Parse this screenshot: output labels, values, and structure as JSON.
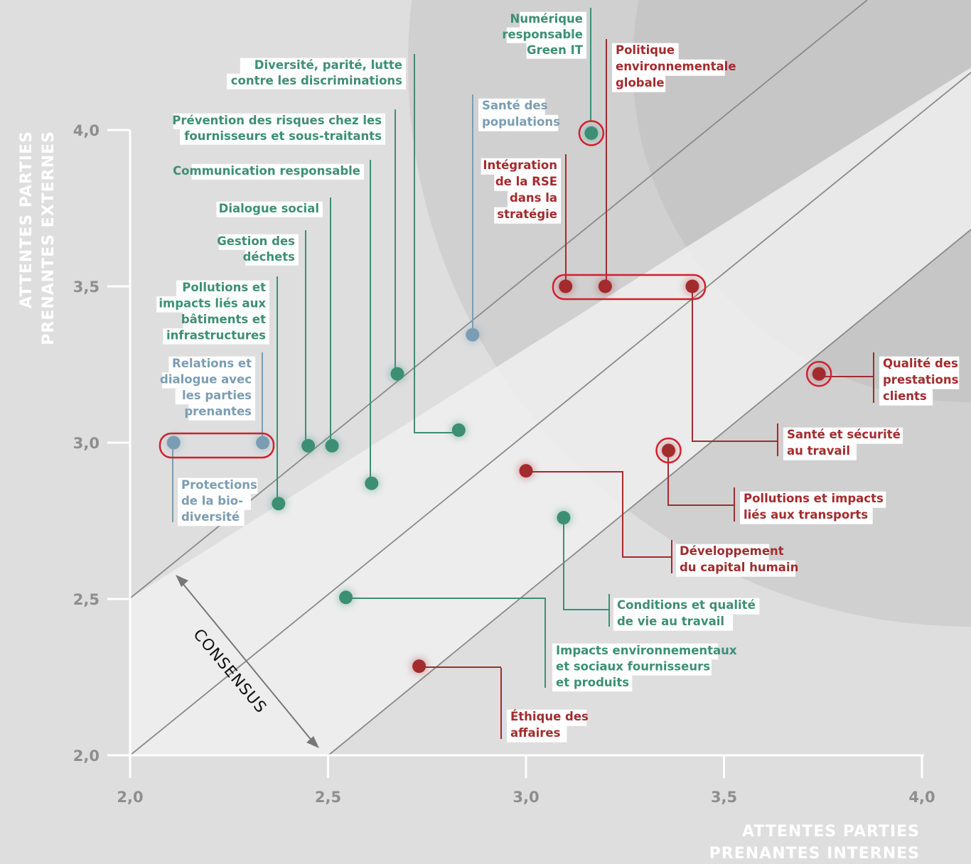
{
  "chart_data": {
    "type": "scatter",
    "xlabel": "ATTENTES PARTIES PRENANTES INTERNES",
    "ylabel": "ATTENTES PARTIES PRENANTES EXTERNES",
    "xlim": [
      2.0,
      4.0
    ],
    "ylim": [
      2.0,
      4.0
    ],
    "x_ticks": [
      "2,0",
      "2,5",
      "3,0",
      "3,5",
      "4,0"
    ],
    "y_ticks": [
      "4,0",
      "3,5",
      "3,0",
      "2,5",
      "2,0"
    ],
    "consensus_label": "CONSENSUS",
    "colors": {
      "green": "#3d8f74",
      "blue": "#7b9db3",
      "red": "#a32b2e",
      "highlight": "#d2202f",
      "axis": "#ffffff",
      "diagonal": "#8a8a8a"
    },
    "points": [
      {
        "name": "Numérique responsable Green IT",
        "lines": [
          "Numérique",
          "responsable",
          "Green IT"
        ],
        "x": 3.165,
        "y": 3.99,
        "color": "green"
      },
      {
        "name": "Politique environnementale globale",
        "lines": [
          "Politique",
          "environnementale",
          "globale"
        ],
        "x": 3.2,
        "y": 3.5,
        "color": "red"
      },
      {
        "name": "Diversité, parité, lutte contre les discriminations",
        "lines": [
          "Diversité, parité, lutte",
          "contre les discriminations"
        ],
        "x": 2.83,
        "y": 3.04,
        "color": "green"
      },
      {
        "name": "Santé des populations",
        "lines": [
          "Santé des",
          "populations"
        ],
        "x": 2.865,
        "y": 3.345,
        "color": "blue"
      },
      {
        "name": "Prévention des risques chez les fournisseurs et sous-traitants",
        "lines": [
          "Prévention des risques chez les",
          "fournisseurs et sous-traitants"
        ],
        "x": 2.675,
        "y": 3.22,
        "color": "green"
      },
      {
        "name": "Intégration de la RSE dans la stratégie",
        "lines": [
          "Intégration",
          "de la RSE",
          "dans la",
          "stratégie"
        ],
        "x": 3.1,
        "y": 3.5,
        "color": "red"
      },
      {
        "name": "Communication responsable",
        "lines": [
          "Communication responsable"
        ],
        "x": 2.61,
        "y": 2.87,
        "color": "green"
      },
      {
        "name": "Dialogue social",
        "lines": [
          "Dialogue social"
        ],
        "x": 2.51,
        "y": 2.99,
        "color": "green"
      },
      {
        "name": "Gestion des déchets",
        "lines": [
          "Gestion des",
          "déchets"
        ],
        "x": 2.45,
        "y": 2.99,
        "color": "green"
      },
      {
        "name": "Pollutions et impacts liés aux bâtiments et infrastructures",
        "lines": [
          "Pollutions et",
          "impacts liés aux",
          "bâtiments et",
          "infrastructures"
        ],
        "x": 2.375,
        "y": 2.805,
        "color": "green"
      },
      {
        "name": "Relations et dialogue avec les parties prenantes",
        "lines": [
          "Relations et",
          "dialogue avec",
          "les parties",
          "prenantes"
        ],
        "x": 2.335,
        "y": 3.0,
        "color": "blue"
      },
      {
        "name": "Protections de la bio-diversité",
        "lines": [
          "Protections",
          "de la bio-",
          "diversité"
        ],
        "x": 2.11,
        "y": 3.0,
        "color": "blue"
      },
      {
        "name": "Qualité des prestations clients",
        "lines": [
          "Qualité des",
          "prestations",
          "clients"
        ],
        "x": 3.74,
        "y": 3.22,
        "color": "red"
      },
      {
        "name": "Santé et sécurité au travail",
        "lines": [
          "Santé et sécurité",
          "au travail"
        ],
        "x": 3.42,
        "y": 3.5,
        "color": "red"
      },
      {
        "name": "Pollutions et impacts liés aux transports",
        "lines": [
          "Pollutions et impacts",
          "liés aux transports"
        ],
        "x": 3.36,
        "y": 2.975,
        "color": "red"
      },
      {
        "name": "Développement du capital humain",
        "lines": [
          "Développement",
          "du capital humain"
        ],
        "x": 3.0,
        "y": 2.91,
        "color": "red"
      },
      {
        "name": "Conditions et qualité de vie au travail",
        "lines": [
          "Conditions et qualité",
          "de vie au travail"
        ],
        "x": 3.095,
        "y": 2.76,
        "color": "green"
      },
      {
        "name": "Impacts environnementaux et sociaux fournisseurs et produits",
        "lines": [
          "Impacts environnementaux",
          "et sociaux fournisseurs",
          "et produits"
        ],
        "x": 2.545,
        "y": 2.505,
        "color": "green"
      },
      {
        "name": "Éthique des affaires",
        "lines": [
          "Éthique des",
          "affaires"
        ],
        "x": 2.73,
        "y": 2.285,
        "color": "red"
      }
    ]
  }
}
